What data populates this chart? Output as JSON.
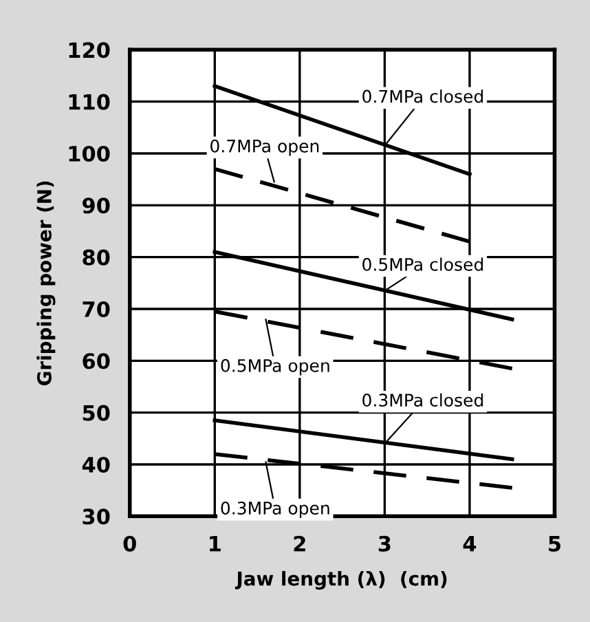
{
  "chart_data": {
    "type": "line",
    "xlabel": "Jaw length (λ)  (cm)",
    "ylabel": "Gripping power (N)",
    "xlim": [
      0,
      5
    ],
    "xticks": [
      0,
      1,
      2,
      3,
      4,
      5
    ],
    "ylim": [
      30,
      120
    ],
    "yticks": [
      30,
      40,
      50,
      60,
      70,
      80,
      90,
      100,
      110,
      120
    ],
    "grid": true,
    "marker": "none",
    "series": [
      {
        "color": "#000000",
        "line_style": "solid",
        "x": [
          1,
          4
        ],
        "values": [
          113,
          96
        ]
      },
      {
        "color": "#000000",
        "line_style": "dashed",
        "x": [
          1,
          4
        ],
        "values": [
          97,
          83
        ]
      },
      {
        "color": "#000000",
        "line_style": "solid",
        "x": [
          1,
          4.5
        ],
        "values": [
          81,
          68
        ]
      },
      {
        "color": "#000000",
        "line_style": "dashed",
        "x": [
          1,
          4.5
        ],
        "values": [
          69.5,
          58.5
        ]
      },
      {
        "color": "#000000",
        "line_style": "solid",
        "x": [
          1,
          4.5
        ],
        "values": [
          48.5,
          41
        ]
      },
      {
        "color": "#000000",
        "line_style": "dashed",
        "x": [
          1,
          4.5
        ],
        "values": [
          42,
          35.5
        ]
      }
    ],
    "annotations": [
      {
        "text": "0.7MPa closed",
        "x": 3,
        "y": 101.5
      },
      {
        "text": "0.7MPa open",
        "x": 1.7,
        "y": 94.5
      },
      {
        "text": "0.5MPa closed",
        "x": 3,
        "y": 73.5
      },
      {
        "text": "0.5MPa open",
        "x": 1.6,
        "y": 68
      },
      {
        "text": "0.3MPa closed",
        "x": 3,
        "y": 44
      },
      {
        "text": "0.3MPa open",
        "x": 1.6,
        "y": 40.5
      }
    ]
  }
}
